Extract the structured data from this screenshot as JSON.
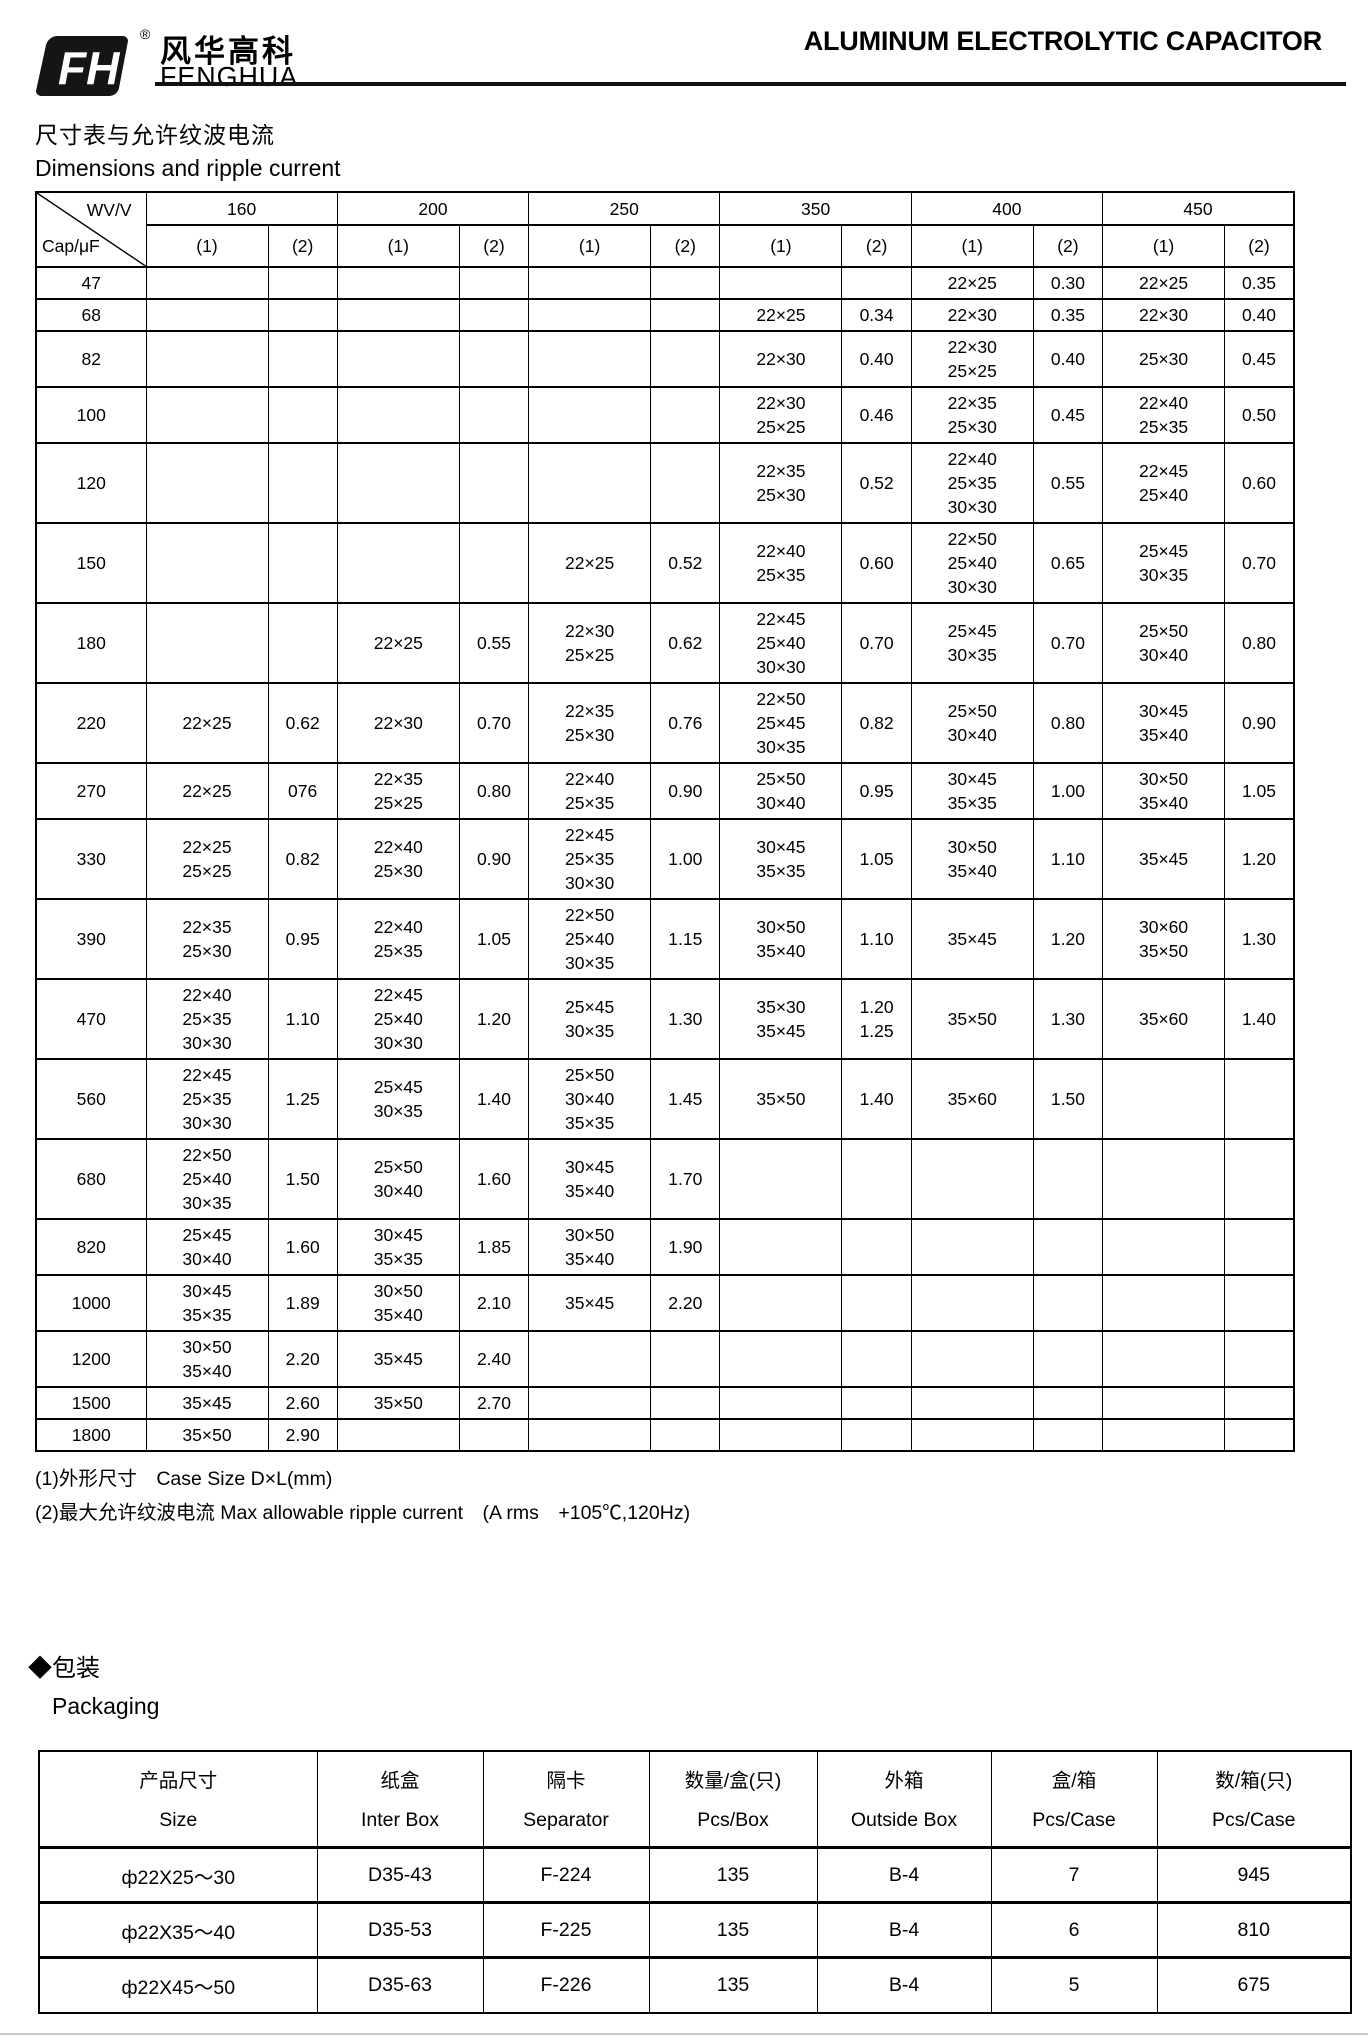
{
  "brand": {
    "logo_monogram": "FH",
    "registered_mark": "®",
    "name_zh": "风华高科",
    "name_en": "FENGHUA"
  },
  "doc_title": "ALUMINUM ELECTROLYTIC CAPACITOR",
  "dimensions_section": {
    "title_zh": "尺寸表与允许纹波电流",
    "title_en": "Dimensions and ripple current",
    "table": {
      "corner_top": "WV/V",
      "corner_bottom": "Cap/μF",
      "voltage_headers": [
        "160",
        "200",
        "250",
        "350",
        "400",
        "450"
      ],
      "sub_header_1": "(1)",
      "sub_header_2": "(2)",
      "rows": [
        {
          "cap": "47",
          "cells": [
            "",
            "",
            "",
            "",
            "",
            "",
            "",
            "",
            "22×25",
            "0.30",
            "22×25",
            "0.35"
          ]
        },
        {
          "cap": "68",
          "cells": [
            "",
            "",
            "",
            "",
            "",
            "",
            "22×25",
            "0.34",
            "22×30",
            "0.35",
            "22×30",
            "0.40"
          ]
        },
        {
          "cap": "82",
          "cells": [
            "",
            "",
            "",
            "",
            "",
            "",
            "22×30",
            "0.40",
            "22×30\n25×25",
            "0.40",
            "25×30",
            "0.45"
          ]
        },
        {
          "cap": "100",
          "cells": [
            "",
            "",
            "",
            "",
            "",
            "",
            "22×30\n25×25",
            "0.46",
            "22×35\n25×30",
            "0.45",
            "22×40\n25×35",
            "0.50"
          ]
        },
        {
          "cap": "120",
          "cells": [
            "",
            "",
            "",
            "",
            "",
            "",
            "22×35\n25×30",
            "0.52",
            "22×40\n25×35\n30×30",
            "0.55",
            "22×45\n25×40",
            "0.60"
          ]
        },
        {
          "cap": "150",
          "cells": [
            "",
            "",
            "",
            "",
            "22×25",
            "0.52",
            "22×40\n25×35",
            "0.60",
            "22×50\n25×40\n30×30",
            "0.65",
            "25×45\n30×35",
            "0.70"
          ]
        },
        {
          "cap": "180",
          "cells": [
            "",
            "",
            "22×25",
            "0.55",
            "22×30\n25×25",
            "0.62",
            "22×45\n25×40\n30×30",
            "0.70",
            "25×45\n30×35",
            "0.70",
            "25×50\n30×40",
            "0.80"
          ]
        },
        {
          "cap": "220",
          "cells": [
            "22×25",
            "0.62",
            "22×30",
            "0.70",
            "22×35\n25×30",
            "0.76",
            "22×50\n25×45\n30×35",
            "0.82",
            "25×50\n30×40",
            "0.80",
            "30×45\n35×40",
            "0.90"
          ]
        },
        {
          "cap": "270",
          "cells": [
            "22×25",
            "076",
            "22×35\n25×25",
            "0.80",
            "22×40\n25×35",
            "0.90",
            "25×50\n30×40",
            "0.95",
            "30×45\n35×35",
            "1.00",
            "30×50\n35×40",
            "1.05"
          ]
        },
        {
          "cap": "330",
          "cells": [
            "22×25\n25×25",
            "0.82",
            "22×40\n25×30",
            "0.90",
            "22×45\n25×35\n30×30",
            "1.00",
            "30×45\n35×35",
            "1.05",
            "30×50\n35×40",
            "1.10",
            "35×45",
            "1.20"
          ]
        },
        {
          "cap": "390",
          "cells": [
            "22×35\n25×30",
            "0.95",
            "22×40\n25×35",
            "1.05",
            "22×50\n25×40\n30×35",
            "1.15",
            "30×50\n35×40",
            "1.10",
            "35×45",
            "1.20",
            "30×60\n35×50",
            "1.30"
          ]
        },
        {
          "cap": "470",
          "cells": [
            "22×40\n25×35\n30×30",
            "1.10",
            "22×45\n25×40\n30×30",
            "1.20",
            "25×45\n30×35",
            "1.30",
            "35×30\n35×45",
            "1.20\n1.25",
            "35×50",
            "1.30",
            "35×60",
            "1.40"
          ]
        },
        {
          "cap": "560",
          "cells": [
            "22×45\n25×35\n30×30",
            "1.25",
            "25×45\n30×35",
            "1.40",
            "25×50\n30×40\n35×35",
            "1.45",
            "35×50",
            "1.40",
            "35×60",
            "1.50",
            "",
            ""
          ]
        },
        {
          "cap": "680",
          "cells": [
            "22×50\n25×40\n30×35",
            "1.50",
            "25×50\n30×40",
            "1.60",
            "30×45\n35×40",
            "1.70",
            "",
            "",
            "",
            "",
            "",
            ""
          ]
        },
        {
          "cap": "820",
          "cells": [
            "25×45\n30×40",
            "1.60",
            "30×45\n35×35",
            "1.85",
            "30×50\n35×40",
            "1.90",
            "",
            "",
            "",
            "",
            "",
            ""
          ]
        },
        {
          "cap": "1000",
          "cells": [
            "30×45\n35×35",
            "1.89",
            "30×50\n35×40",
            "2.10",
            "35×45",
            "2.20",
            "",
            "",
            "",
            "",
            "",
            ""
          ]
        },
        {
          "cap": "1200",
          "cells": [
            "30×50\n35×40",
            "2.20",
            "35×45",
            "2.40",
            "",
            "",
            "",
            "",
            "",
            "",
            "",
            ""
          ]
        },
        {
          "cap": "1500",
          "cells": [
            "35×45",
            "2.60",
            "35×50",
            "2.70",
            "",
            "",
            "",
            "",
            "",
            "",
            "",
            ""
          ]
        },
        {
          "cap": "1800",
          "cells": [
            "35×50",
            "2.90",
            "",
            "",
            "",
            "",
            "",
            "",
            "",
            "",
            "",
            ""
          ]
        }
      ]
    },
    "footnote_1": "(1)外形尺寸　Case Size D×L(mm)",
    "footnote_2": "(2)最大允许纹波电流 Max allowable ripple current　(A rms　+105℃,120Hz)"
  },
  "packaging_section": {
    "bullet": "◆",
    "title_zh": "包装",
    "title_en": "Packaging",
    "table": {
      "columns": [
        {
          "zh": "产品尺寸",
          "en": "Size"
        },
        {
          "zh": "纸盒",
          "en": "Inter Box"
        },
        {
          "zh": "隔卡",
          "en": "Separator"
        },
        {
          "zh": "数量/盒(只)",
          "en": "Pcs/Box"
        },
        {
          "zh": "外箱",
          "en": "Outside Box"
        },
        {
          "zh": "盒/箱",
          "en": "Pcs/Case"
        },
        {
          "zh": "数/箱(只)",
          "en": "Pcs/Case"
        }
      ],
      "rows": [
        [
          "ф22X25～30",
          "D35-43",
          "F-224",
          "135",
          "B-4",
          "7",
          "945"
        ],
        [
          "ф22X35～40",
          "D35-53",
          "F-225",
          "135",
          "B-4",
          "6",
          "810"
        ],
        [
          "ф22X45～50",
          "D35-63",
          "F-226",
          "135",
          "B-4",
          "5",
          "675"
        ]
      ]
    }
  }
}
